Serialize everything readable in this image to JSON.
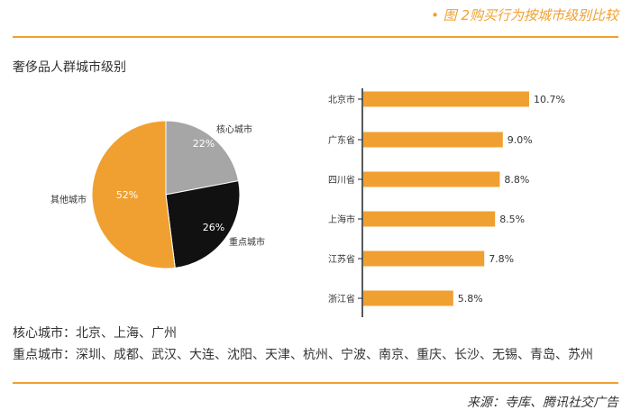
{
  "header": {
    "figure_title": "• 图 2购买行为按城市级别比较"
  },
  "notes": {
    "core_cities": "核心城市：北京、上海、广州",
    "key_cities": "重点城市：深圳、成都、武汉、大连、沈阳、天津、杭州、宁波、南京、重庆、长沙、无锡、青岛、苏州"
  },
  "footer": {
    "source": "来源：寺库、腾讯社交广告"
  },
  "colors": {
    "accent": "#f0a030",
    "gray": "#a6a6a6",
    "black": "#111111"
  },
  "chart_data": [
    {
      "type": "pie",
      "title": "奢侈品人群城市级别",
      "slices": [
        {
          "label": "核心城市",
          "value": 22,
          "value_label": "22%",
          "color": "#a6a6a6"
        },
        {
          "label": "重点城市",
          "value": 26,
          "value_label": "26%",
          "color": "#111111"
        },
        {
          "label": "其他城市",
          "value": 52,
          "value_label": "52%",
          "color": "#f0a030"
        }
      ]
    },
    {
      "type": "bar",
      "orientation": "horizontal",
      "categories": [
        "北京市",
        "广东省",
        "四川省",
        "上海市",
        "江苏省",
        "浙江省"
      ],
      "values": [
        10.7,
        9.0,
        8.8,
        8.5,
        7.8,
        5.8
      ],
      "value_labels": [
        "10.7%",
        "9.0%",
        "8.8%",
        "8.5%",
        "7.8%",
        "5.8%"
      ],
      "color": "#f0a030"
    }
  ]
}
